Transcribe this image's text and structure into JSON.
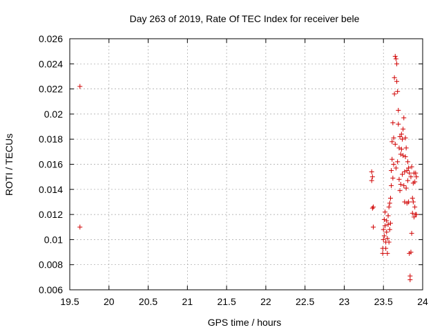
{
  "chart_data": {
    "type": "scatter",
    "title": "Day 263 of 2019, Rate Of TEC Index for receiver bele",
    "xlabel": "GPS time / hours",
    "ylabel": "ROTI / TECUs",
    "xlim": [
      19.5,
      24
    ],
    "ylim": [
      0.006,
      0.026
    ],
    "grid": true,
    "x_ticks": [
      19.5,
      20,
      20.5,
      21,
      21.5,
      22,
      22.5,
      23,
      23.5,
      24
    ],
    "x_tick_labels": [
      "19.5",
      "20",
      "20.5",
      "21",
      "21.5",
      "22",
      "22.5",
      "23",
      "23.5",
      "24"
    ],
    "y_ticks": [
      0.006,
      0.008,
      0.01,
      0.012,
      0.014,
      0.016,
      0.018,
      0.02,
      0.022,
      0.024,
      0.026
    ],
    "y_tick_labels": [
      "0.006",
      "0.008",
      "0.01",
      "0.012",
      "0.014",
      "0.016",
      "0.018",
      "0.02",
      "0.022",
      "0.024",
      "0.026"
    ],
    "series": [
      {
        "name": "ROTI",
        "color": "#d00000",
        "marker": "plus",
        "points": [
          [
            19.63,
            0.0222
          ],
          [
            19.63,
            0.011
          ],
          [
            23.35,
            0.0154
          ],
          [
            23.35,
            0.0147
          ],
          [
            23.36,
            0.015
          ],
          [
            23.36,
            0.0125
          ],
          [
            23.37,
            0.0126
          ],
          [
            23.37,
            0.011
          ],
          [
            23.49,
            0.0093
          ],
          [
            23.49,
            0.0089
          ],
          [
            23.5,
            0.01
          ],
          [
            23.5,
            0.0108
          ],
          [
            23.51,
            0.0116
          ],
          [
            23.51,
            0.0103
          ],
          [
            23.52,
            0.0111
          ],
          [
            23.52,
            0.0122
          ],
          [
            23.53,
            0.0098
          ],
          [
            23.53,
            0.0093
          ],
          [
            23.54,
            0.0106
          ],
          [
            23.54,
            0.0115
          ],
          [
            23.55,
            0.0101
          ],
          [
            23.55,
            0.0089
          ],
          [
            23.56,
            0.0112
          ],
          [
            23.56,
            0.0119
          ],
          [
            23.57,
            0.0098
          ],
          [
            23.57,
            0.0126
          ],
          [
            23.58,
            0.0108
          ],
          [
            23.58,
            0.0129
          ],
          [
            23.59,
            0.0113
          ],
          [
            23.59,
            0.0133
          ],
          [
            23.6,
            0.0143
          ],
          [
            23.6,
            0.0155
          ],
          [
            23.61,
            0.0164
          ],
          [
            23.61,
            0.0178
          ],
          [
            23.62,
            0.0193
          ],
          [
            23.62,
            0.0149
          ],
          [
            23.63,
            0.016
          ],
          [
            23.63,
            0.0181
          ],
          [
            23.64,
            0.0216
          ],
          [
            23.64,
            0.0229
          ],
          [
            23.65,
            0.0246
          ],
          [
            23.65,
            0.0176
          ],
          [
            23.66,
            0.0244
          ],
          [
            23.66,
            0.0157
          ],
          [
            23.67,
            0.024
          ],
          [
            23.67,
            0.0226
          ],
          [
            23.68,
            0.0218
          ],
          [
            23.68,
            0.0162
          ],
          [
            23.69,
            0.0203
          ],
          [
            23.69,
            0.0192
          ],
          [
            23.7,
            0.0173
          ],
          [
            23.7,
            0.0148
          ],
          [
            23.71,
            0.0182
          ],
          [
            23.71,
            0.0139
          ],
          [
            23.72,
            0.0168
          ],
          [
            23.72,
            0.0144
          ],
          [
            23.73,
            0.0184
          ],
          [
            23.73,
            0.0172
          ],
          [
            23.74,
            0.018
          ],
          [
            23.74,
            0.0152
          ],
          [
            23.75,
            0.0188
          ],
          [
            23.75,
            0.0167
          ],
          [
            23.76,
            0.0197
          ],
          [
            23.76,
            0.0143
          ],
          [
            23.77,
            0.0154
          ],
          [
            23.77,
            0.013
          ],
          [
            23.78,
            0.0181
          ],
          [
            23.78,
            0.0166
          ],
          [
            23.79,
            0.0173
          ],
          [
            23.79,
            0.0141
          ],
          [
            23.8,
            0.0155
          ],
          [
            23.8,
            0.0129
          ],
          [
            23.81,
            0.0162
          ],
          [
            23.81,
            0.0147
          ],
          [
            23.82,
            0.0157
          ],
          [
            23.82,
            0.013
          ],
          [
            23.83,
            0.0153
          ],
          [
            23.83,
            0.0089
          ],
          [
            23.84,
            0.0071
          ],
          [
            23.84,
            0.0068
          ],
          [
            23.85,
            0.015
          ],
          [
            23.85,
            0.009
          ],
          [
            23.86,
            0.0158
          ],
          [
            23.86,
            0.0105
          ],
          [
            23.87,
            0.0133
          ],
          [
            23.87,
            0.0121
          ],
          [
            23.88,
            0.0145
          ],
          [
            23.88,
            0.013
          ],
          [
            23.89,
            0.0153
          ],
          [
            23.89,
            0.0118
          ],
          [
            23.9,
            0.0146
          ],
          [
            23.9,
            0.0126
          ],
          [
            23.91,
            0.012
          ],
          [
            23.91,
            0.0153
          ],
          [
            23.92,
            0.015
          ],
          [
            23.92,
            0.012
          ]
        ]
      }
    ]
  }
}
